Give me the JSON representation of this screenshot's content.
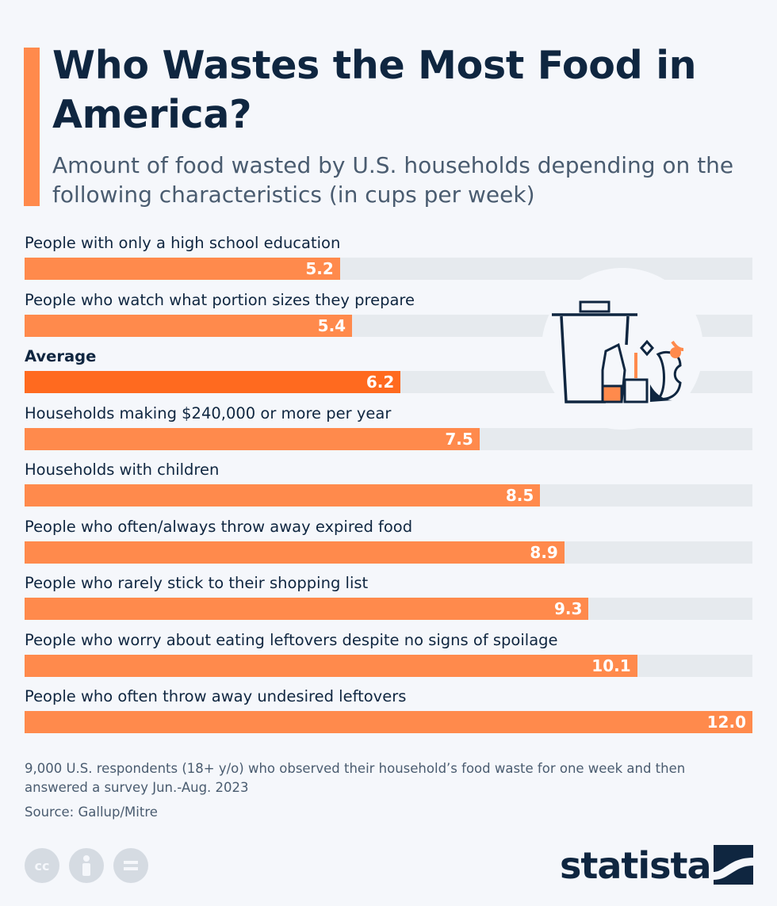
{
  "header": {
    "title": "Who Wastes the Most Food in America?",
    "subtitle": "Amount of food wasted by U.S. households depending on the following characteristics (in cups per week)"
  },
  "chart_data": {
    "type": "bar",
    "orientation": "horizontal",
    "title": "Who Wastes the Most Food in America?",
    "subtitle": "Amount of food wasted by U.S. households depending on the following characteristics (in cups per week)",
    "xlim": [
      0,
      12
    ],
    "categories": [
      "People with only a high school education",
      "People who watch what portion sizes they prepare",
      "Average",
      "Households making $240,000 or more per year",
      "Households with children",
      "People who often/always throw away expired food",
      "People who rarely stick to their shopping list",
      "People who worry about eating leftovers despite no signs of spoilage",
      "People who often throw away undesired leftovers"
    ],
    "values": [
      5.2,
      5.4,
      6.2,
      7.5,
      8.5,
      8.9,
      9.3,
      10.1,
      12.0
    ],
    "value_labels": [
      "5.2",
      "5.4",
      "6.2",
      "7.5",
      "8.5",
      "8.9",
      "9.3",
      "10.1",
      "12.0"
    ],
    "highlight_index": 2,
    "colors": {
      "bar": "#ff8a4c",
      "highlight": "#ff6a1f",
      "track": "#e6eaee"
    }
  },
  "footer": {
    "note": "9,000 U.S. respondents (18+ y/o) who observed their household’s food waste for one week and then answered a survey Jun.-Aug. 2023",
    "source": "Source: Gallup/Mitre",
    "license_icons": [
      "cc-icon",
      "attribution-icon",
      "no-derivatives-icon"
    ],
    "brand": "statista"
  },
  "icon": {
    "name": "trash-can-food-waste-icon"
  }
}
